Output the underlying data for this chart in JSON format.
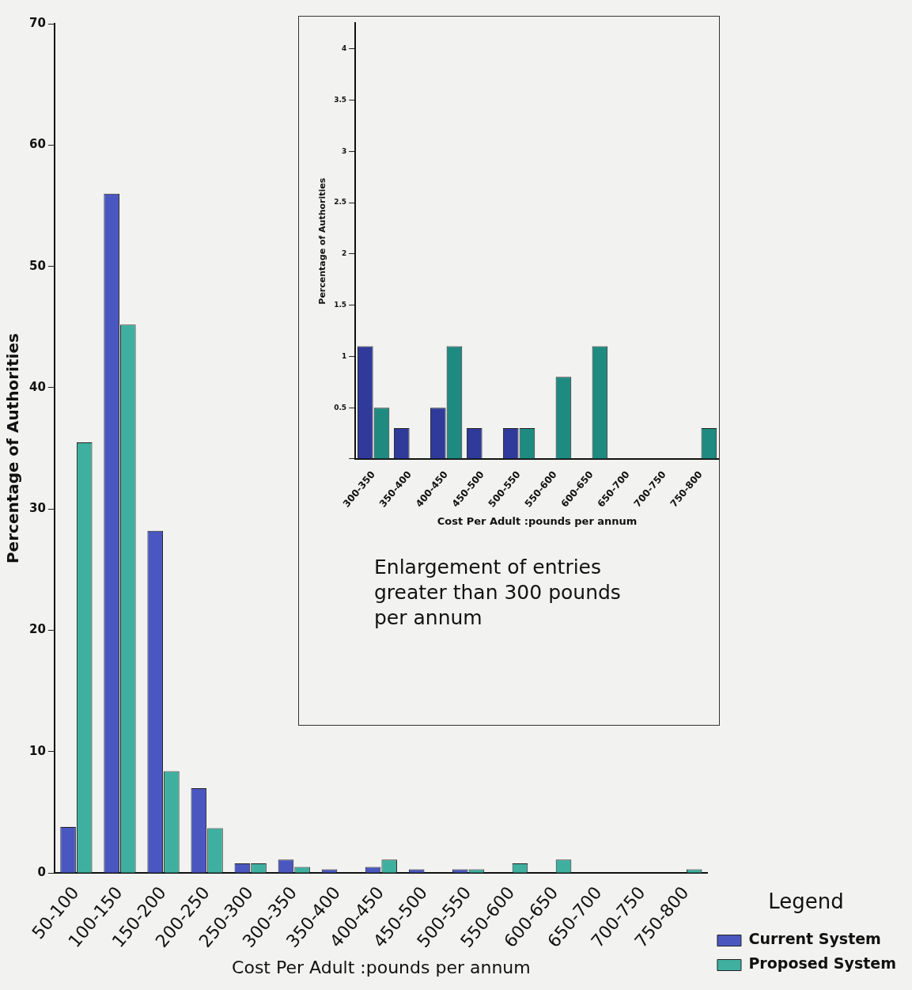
{
  "chart_data": [
    {
      "type": "bar",
      "xlabel": "Cost Per Adult :pounds per annum",
      "ylabel": "Percentage of Authorities",
      "categories": [
        "50-100",
        "100-150",
        "150-200",
        "200-250",
        "250-300",
        "300-350",
        "350-400",
        "400-450",
        "450-500",
        "500-550",
        "550-600",
        "600-650",
        "650-700",
        "700-750",
        "750-800"
      ],
      "series": [
        {
          "name": "Current System",
          "color": "#4a57c0",
          "values": [
            3.8,
            56,
            28.2,
            7,
            0.8,
            1.1,
            0.3,
            0.5,
            0.3,
            0.3,
            0,
            0,
            0,
            0,
            0
          ]
        },
        {
          "name": "Proposed System",
          "color": "#3fb0a0",
          "values": [
            35.5,
            45.2,
            8.4,
            3.7,
            0.8,
            0.5,
            0,
            1.1,
            0,
            0.3,
            0.8,
            1.1,
            0,
            0,
            0.3
          ]
        }
      ],
      "ylim": [
        0,
        70
      ],
      "yticks": [
        0,
        10,
        20,
        30,
        40,
        50,
        60,
        70
      ],
      "grid": false,
      "legend": "bottom right",
      "legend_title": "Legend"
    },
    {
      "type": "bar",
      "xlabel": "Cost Per Adult :pounds per annum",
      "ylabel": "Percentage of Authorities",
      "categories": [
        "300-350",
        "350-400",
        "400-450",
        "450-500",
        "500-550",
        "550-600",
        "600-650",
        "650-700",
        "700-750",
        "750-800"
      ],
      "series": [
        {
          "color": "#2f3a9a",
          "values": [
            1.1,
            0.3,
            0.5,
            0.3,
            0.3,
            0,
            0,
            0,
            0,
            0
          ]
        },
        {
          "color": "#1f8a80",
          "values": [
            0.5,
            0,
            1.1,
            0,
            0.3,
            0.8,
            1.1,
            0,
            0,
            0.3
          ]
        }
      ],
      "ylim": [
        0,
        4.25
      ],
      "yticks": [
        {
          "value": 0,
          "label": null
        },
        0.5,
        1,
        1.5,
        2,
        2.5,
        3,
        3.5,
        4
      ],
      "grid": false,
      "annotations": [
        "Enlargement of entries greater than 300 pounds per annum"
      ]
    }
  ]
}
